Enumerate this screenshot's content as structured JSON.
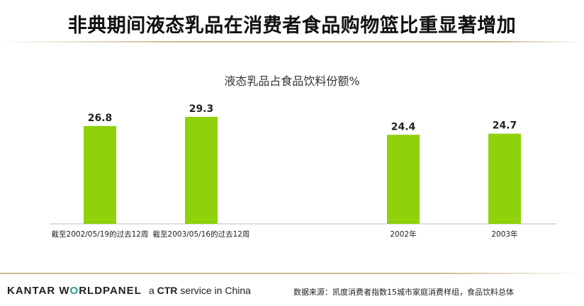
{
  "page_title": "非典期间液态乳品在消费者食品购物篮比重显著增加",
  "footer": {
    "logo_brand": "KANTAR W",
    "logo_o": "O",
    "logo_rest": "RLDPANEL",
    "tag_a": "a",
    "tag_ctr": "CTR",
    "tag_rest": "service in China",
    "source": "数据来源：凯度消费者指数15城市家庭消费样组，食品饮料总体"
  },
  "colors": {
    "bar": "#8fd10a",
    "axis": "#bdbdbd"
  },
  "chart_data": {
    "type": "bar",
    "title": "液态乳品占食品饮料份额%",
    "categories": [
      "截至2002/05/19的过去12周",
      "截至2003/05/16的过去12周",
      "2002年",
      "2003年"
    ],
    "values": [
      26.8,
      29.3,
      24.4,
      24.7
    ],
    "data_labels": [
      "26.8",
      "29.3",
      "24.4",
      "24.7"
    ],
    "ylim": [
      0,
      35
    ],
    "grid": false,
    "legend": "none"
  }
}
